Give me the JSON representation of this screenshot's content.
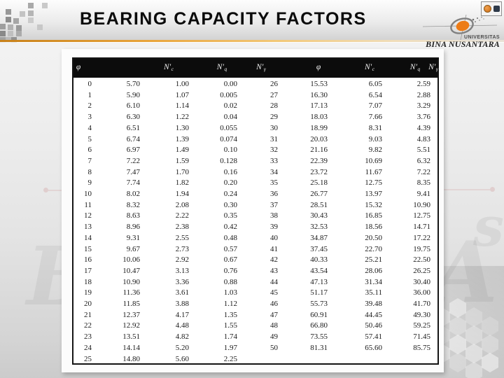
{
  "slide": {
    "title": "BEARING CAPACITY FACTORS",
    "logo": {
      "line1": "UNIVERSITAS",
      "line2": "BINA NUSANTARA"
    },
    "watermarks": {
      "left": "B",
      "right_small": "s",
      "right_large": "A"
    }
  },
  "table": {
    "headers": [
      {
        "base": "φ",
        "sub": ""
      },
      {
        "base": "N′",
        "sub": "c"
      },
      {
        "base": "N′",
        "sub": "q"
      },
      {
        "base": "N′",
        "sub": "γ"
      },
      {
        "base": "φ",
        "sub": ""
      },
      {
        "base": "N′",
        "sub": "c"
      },
      {
        "base": "N′",
        "sub": "q"
      },
      {
        "base": "N′",
        "sub": "γ"
      }
    ],
    "rows": [
      [
        "0",
        "5.70",
        "1.00",
        "0.00",
        "26",
        "15.53",
        "6.05",
        "2.59"
      ],
      [
        "1",
        "5.90",
        "1.07",
        "0.005",
        "27",
        "16.30",
        "6.54",
        "2.88"
      ],
      [
        "2",
        "6.10",
        "1.14",
        "0.02",
        "28",
        "17.13",
        "7.07",
        "3.29"
      ],
      [
        "3",
        "6.30",
        "1.22",
        "0.04",
        "29",
        "18.03",
        "7.66",
        "3.76"
      ],
      [
        "4",
        "6.51",
        "1.30",
        "0.055",
        "30",
        "18.99",
        "8.31",
        "4.39"
      ],
      [
        "5",
        "6.74",
        "1.39",
        "0.074",
        "31",
        "20.03",
        "9.03",
        "4.83"
      ],
      [
        "6",
        "6.97",
        "1.49",
        "0.10",
        "32",
        "21.16",
        "9.82",
        "5.51"
      ],
      [
        "7",
        "7.22",
        "1.59",
        "0.128",
        "33",
        "22.39",
        "10.69",
        "6.32"
      ],
      [
        "8",
        "7.47",
        "1.70",
        "0.16",
        "34",
        "23.72",
        "11.67",
        "7.22"
      ],
      [
        "9",
        "7.74",
        "1.82",
        "0.20",
        "35",
        "25.18",
        "12.75",
        "8.35"
      ],
      [
        "10",
        "8.02",
        "1.94",
        "0.24",
        "36",
        "26.77",
        "13.97",
        "9.41"
      ],
      [
        "11",
        "8.32",
        "2.08",
        "0.30",
        "37",
        "28.51",
        "15.32",
        "10.90"
      ],
      [
        "12",
        "8.63",
        "2.22",
        "0.35",
        "38",
        "30.43",
        "16.85",
        "12.75"
      ],
      [
        "13",
        "8.96",
        "2.38",
        "0.42",
        "39",
        "32.53",
        "18.56",
        "14.71"
      ],
      [
        "14",
        "9.31",
        "2.55",
        "0.48",
        "40",
        "34.87",
        "20.50",
        "17.22"
      ],
      [
        "15",
        "9.67",
        "2.73",
        "0.57",
        "41",
        "37.45",
        "22.70",
        "19.75"
      ],
      [
        "16",
        "10.06",
        "2.92",
        "0.67",
        "42",
        "40.33",
        "25.21",
        "22.50"
      ],
      [
        "17",
        "10.47",
        "3.13",
        "0.76",
        "43",
        "43.54",
        "28.06",
        "26.25"
      ],
      [
        "18",
        "10.90",
        "3.36",
        "0.88",
        "44",
        "47.13",
        "31.34",
        "30.40"
      ],
      [
        "19",
        "11.36",
        "3.61",
        "1.03",
        "45",
        "51.17",
        "35.11",
        "36.00"
      ],
      [
        "20",
        "11.85",
        "3.88",
        "1.12",
        "46",
        "55.73",
        "39.48",
        "41.70"
      ],
      [
        "21",
        "12.37",
        "4.17",
        "1.35",
        "47",
        "60.91",
        "44.45",
        "49.30"
      ],
      [
        "22",
        "12.92",
        "4.48",
        "1.55",
        "48",
        "66.80",
        "50.46",
        "59.25"
      ],
      [
        "23",
        "13.51",
        "4.82",
        "1.74",
        "49",
        "73.55",
        "57.41",
        "71.45"
      ],
      [
        "24",
        "14.14",
        "5.20",
        "1.97",
        "50",
        "81.31",
        "65.60",
        "85.75"
      ],
      [
        "25",
        "14.80",
        "5.60",
        "2.25",
        "",
        "",
        "",
        ""
      ]
    ]
  }
}
